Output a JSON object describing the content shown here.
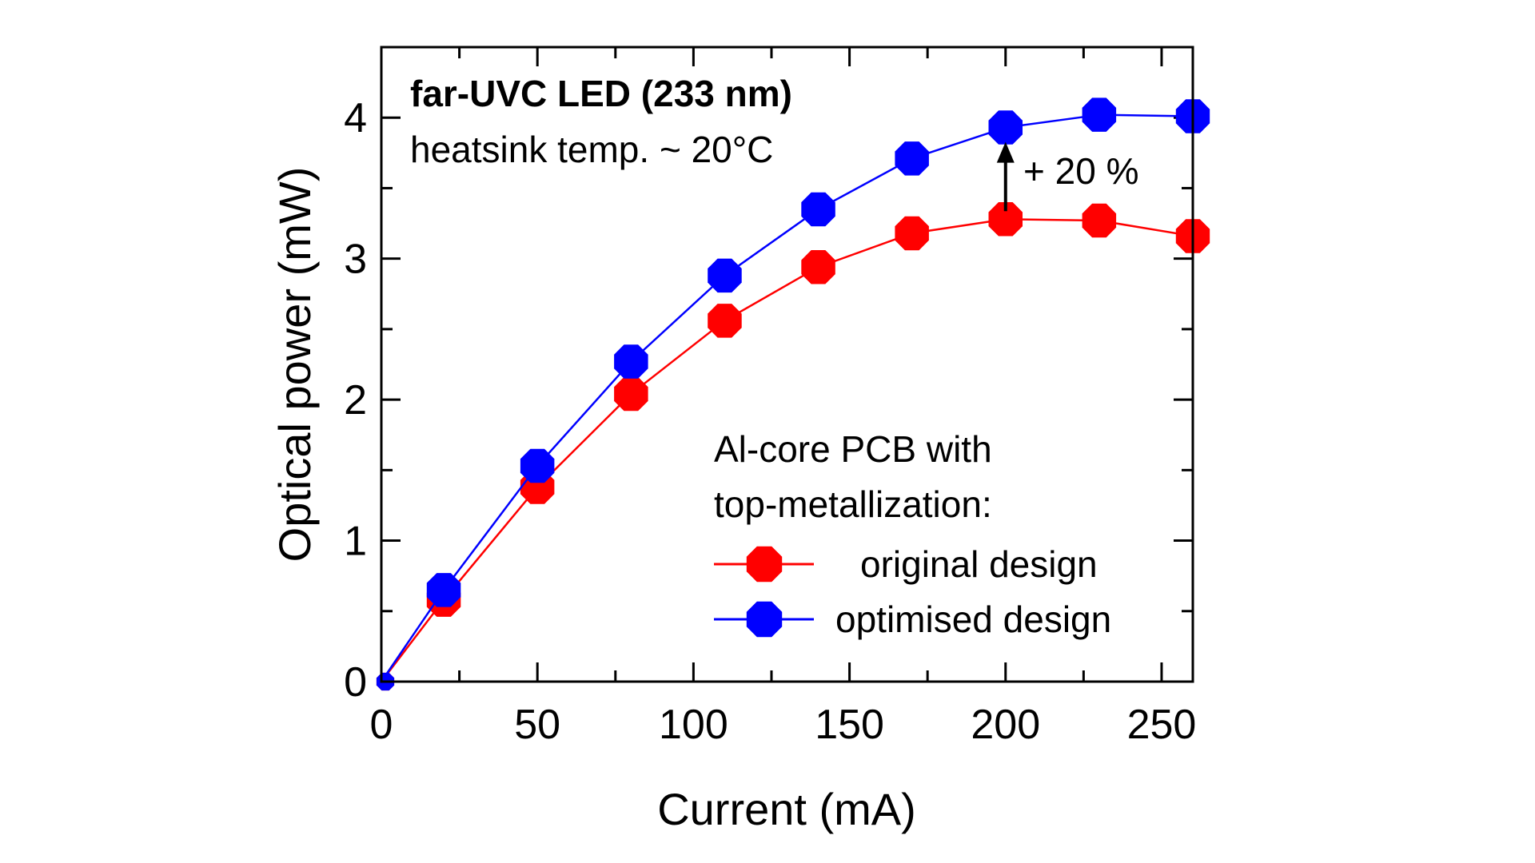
{
  "chart_data": {
    "type": "line",
    "title": "",
    "xlabel": "Current (mA)",
    "ylabel": "Optical power (mW)",
    "xlim": [
      0,
      260
    ],
    "ylim": [
      0,
      4.5
    ],
    "xticks": [
      0,
      50,
      100,
      150,
      200,
      250
    ],
    "yticks": [
      0,
      1,
      2,
      3,
      4
    ],
    "grid": false,
    "legend_position": "bottom-right",
    "legend_title": [
      "Al-core PCB with",
      "top-metallization:"
    ],
    "annotations": {
      "heading": "far-UVC LED (233 nm)",
      "subheading": "heatsink temp. ~ 20°C",
      "arrow_label": "+ 20 %",
      "arrow_at_x": 200
    },
    "x": [
      0,
      20,
      50,
      80,
      110,
      140,
      170,
      200,
      230,
      260
    ],
    "series": [
      {
        "name": "original design",
        "color": "#ff0000",
        "values": [
          0,
          0.58,
          1.38,
          2.04,
          2.56,
          2.94,
          3.18,
          3.28,
          3.27,
          3.16
        ]
      },
      {
        "name": "optimised design",
        "color": "#0000ff",
        "values": [
          0,
          0.65,
          1.53,
          2.27,
          2.88,
          3.35,
          3.71,
          3.93,
          4.02,
          4.01
        ]
      }
    ]
  }
}
